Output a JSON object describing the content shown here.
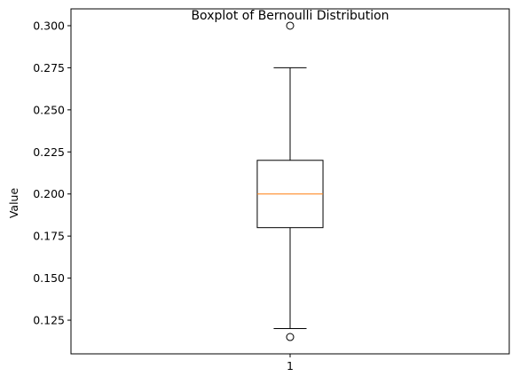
{
  "chart_data": {
    "type": "boxplot",
    "title": "Boxplot of Bernoulli Distribution",
    "xlabel": "",
    "ylabel": "Value",
    "categories": [
      "1"
    ],
    "boxes": [
      {
        "category": "1",
        "whisker_low": 0.12,
        "q1": 0.18,
        "median": 0.2,
        "q3": 0.22,
        "whisker_high": 0.275,
        "outliers": [
          0.3,
          0.115
        ]
      }
    ],
    "ylim": [
      0.105,
      0.31
    ],
    "yticks": [
      "0.125",
      "0.150",
      "0.175",
      "0.200",
      "0.225",
      "0.250",
      "0.275",
      "0.300"
    ],
    "grid": false,
    "colors": {
      "box": "#000000",
      "median": "#ff7f0e",
      "outlier": "#000000"
    }
  }
}
